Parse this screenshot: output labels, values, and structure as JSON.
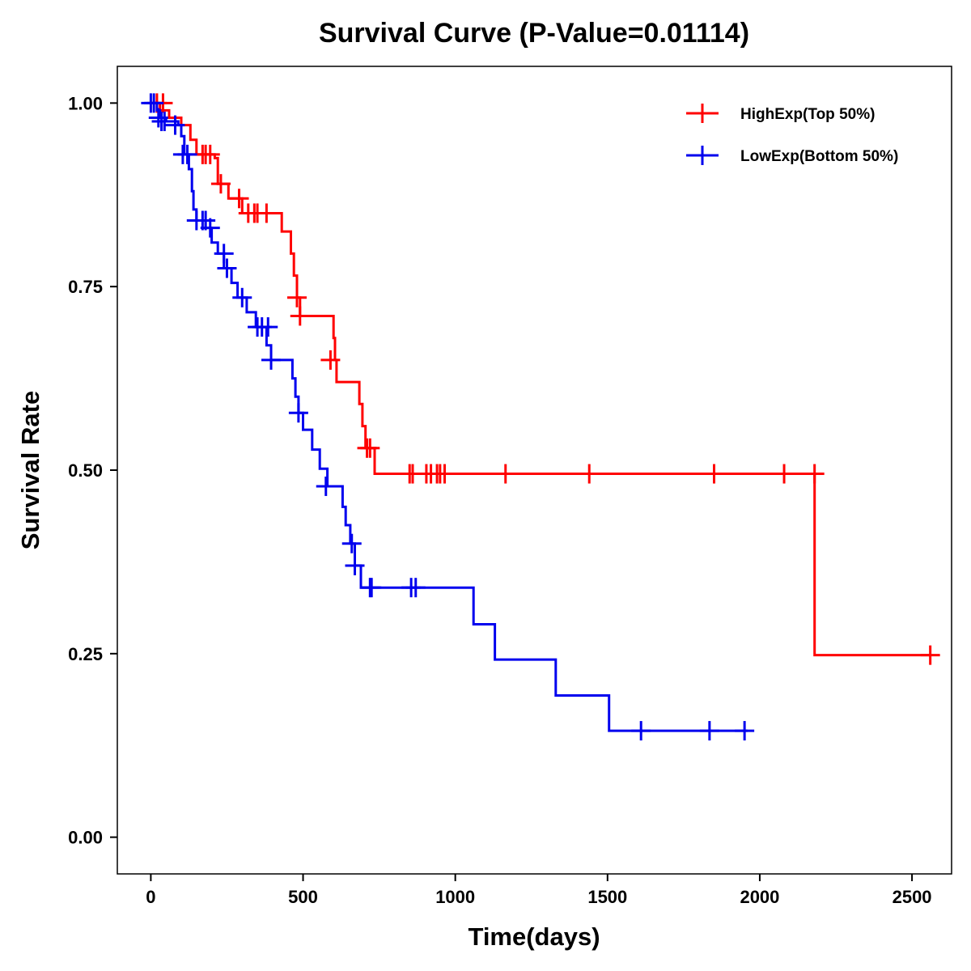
{
  "chart_data": {
    "type": "line",
    "title": "Survival Curve (P-Value=0.01114)",
    "xlabel": "Time(days)",
    "ylabel": "Survival Rate",
    "xlim": [
      -110,
      2630
    ],
    "ylim": [
      -0.05,
      1.05
    ],
    "xticks": [
      0,
      500,
      1000,
      1500,
      2000,
      2500
    ],
    "xtick_labels": [
      "0",
      "500",
      "1000",
      "1500",
      "2000",
      "2500"
    ],
    "yticks": [
      0.0,
      0.25,
      0.5,
      0.75,
      1.0
    ],
    "ytick_labels": [
      "0.00",
      "0.25",
      "0.50",
      "0.75",
      "1.00"
    ],
    "grid": false,
    "legend_position": "top-right",
    "series": [
      {
        "name": "HighExp(Top 50%)",
        "color": "#ff0000",
        "steps": [
          [
            0,
            1.0
          ],
          [
            30,
            0.99
          ],
          [
            60,
            0.98
          ],
          [
            100,
            0.97
          ],
          [
            130,
            0.95
          ],
          [
            150,
            0.93
          ],
          [
            210,
            0.925
          ],
          [
            220,
            0.89
          ],
          [
            255,
            0.87
          ],
          [
            300,
            0.85
          ],
          [
            430,
            0.825
          ],
          [
            460,
            0.795
          ],
          [
            470,
            0.765
          ],
          [
            480,
            0.735
          ],
          [
            490,
            0.71
          ],
          [
            600,
            0.68
          ],
          [
            605,
            0.65
          ],
          [
            610,
            0.62
          ],
          [
            685,
            0.59
          ],
          [
            695,
            0.56
          ],
          [
            705,
            0.53
          ],
          [
            735,
            0.495
          ],
          [
            2180,
            0.248
          ],
          [
            2560,
            0.248
          ]
        ],
        "censored": [
          [
            20,
            1.0
          ],
          [
            40,
            1.0
          ],
          [
            170,
            0.93
          ],
          [
            180,
            0.93
          ],
          [
            195,
            0.93
          ],
          [
            230,
            0.89
          ],
          [
            290,
            0.87
          ],
          [
            320,
            0.85
          ],
          [
            340,
            0.85
          ],
          [
            350,
            0.85
          ],
          [
            380,
            0.85
          ],
          [
            480,
            0.735
          ],
          [
            490,
            0.71
          ],
          [
            590,
            0.65
          ],
          [
            710,
            0.53
          ],
          [
            720,
            0.53
          ],
          [
            850,
            0.495
          ],
          [
            860,
            0.495
          ],
          [
            905,
            0.495
          ],
          [
            920,
            0.495
          ],
          [
            940,
            0.495
          ],
          [
            950,
            0.495
          ],
          [
            965,
            0.495
          ],
          [
            1165,
            0.495
          ],
          [
            1440,
            0.495
          ],
          [
            1850,
            0.495
          ],
          [
            2080,
            0.495
          ],
          [
            2180,
            0.495
          ],
          [
            2560,
            0.248
          ]
        ]
      },
      {
        "name": "LowExp(Bottom 50%)",
        "color": "#0000ee",
        "steps": [
          [
            0,
            1.0
          ],
          [
            20,
            0.99
          ],
          [
            30,
            0.98
          ],
          [
            50,
            0.975
          ],
          [
            90,
            0.97
          ],
          [
            100,
            0.955
          ],
          [
            110,
            0.93
          ],
          [
            125,
            0.91
          ],
          [
            135,
            0.88
          ],
          [
            140,
            0.855
          ],
          [
            150,
            0.84
          ],
          [
            180,
            0.83
          ],
          [
            200,
            0.81
          ],
          [
            220,
            0.795
          ],
          [
            240,
            0.775
          ],
          [
            265,
            0.755
          ],
          [
            285,
            0.735
          ],
          [
            315,
            0.715
          ],
          [
            345,
            0.695
          ],
          [
            380,
            0.67
          ],
          [
            395,
            0.65
          ],
          [
            465,
            0.625
          ],
          [
            475,
            0.6
          ],
          [
            485,
            0.578
          ],
          [
            500,
            0.555
          ],
          [
            530,
            0.528
          ],
          [
            555,
            0.502
          ],
          [
            580,
            0.478
          ],
          [
            630,
            0.45
          ],
          [
            640,
            0.425
          ],
          [
            655,
            0.4
          ],
          [
            670,
            0.37
          ],
          [
            690,
            0.34
          ],
          [
            1060,
            0.29
          ],
          [
            1130,
            0.242
          ],
          [
            1330,
            0.193
          ],
          [
            1505,
            0.145
          ],
          [
            1960,
            0.145
          ]
        ],
        "censored": [
          [
            0,
            1.0
          ],
          [
            10,
            1.0
          ],
          [
            25,
            0.98
          ],
          [
            35,
            0.975
          ],
          [
            45,
            0.975
          ],
          [
            80,
            0.97
          ],
          [
            105,
            0.93
          ],
          [
            120,
            0.93
          ],
          [
            150,
            0.84
          ],
          [
            170,
            0.84
          ],
          [
            180,
            0.84
          ],
          [
            195,
            0.83
          ],
          [
            240,
            0.795
          ],
          [
            250,
            0.775
          ],
          [
            300,
            0.735
          ],
          [
            350,
            0.695
          ],
          [
            365,
            0.695
          ],
          [
            385,
            0.695
          ],
          [
            395,
            0.65
          ],
          [
            485,
            0.578
          ],
          [
            575,
            0.478
          ],
          [
            660,
            0.4
          ],
          [
            670,
            0.37
          ],
          [
            720,
            0.34
          ],
          [
            725,
            0.34
          ],
          [
            855,
            0.34
          ],
          [
            870,
            0.34
          ],
          [
            1610,
            0.145
          ],
          [
            1835,
            0.145
          ],
          [
            1950,
            0.145
          ]
        ]
      }
    ]
  }
}
